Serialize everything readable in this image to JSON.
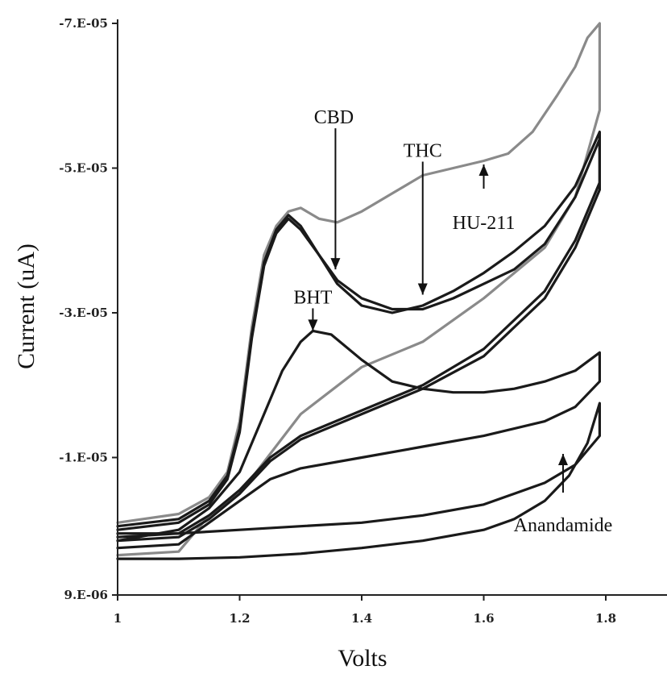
{
  "chart_data": {
    "type": "line",
    "xlabel": "Volts",
    "ylabel": "Current (uA)",
    "xlim": [
      1,
      1.8
    ],
    "ylim": [
      9e-06,
      -7e-05
    ],
    "x_ticks": [
      {
        "value": 1,
        "label": "1"
      },
      {
        "value": 1.2,
        "label": "1.2"
      },
      {
        "value": 1.4,
        "label": "1.4"
      },
      {
        "value": 1.6,
        "label": "1.6"
      },
      {
        "value": 1.8,
        "label": "1.8"
      }
    ],
    "y_ticks": [
      {
        "value": -7e-05,
        "label": "-7.E-05"
      },
      {
        "value": -5e-05,
        "label": "-5.E-05"
      },
      {
        "value": -3e-05,
        "label": "-3.E-05"
      },
      {
        "value": -1e-05,
        "label": "-1.E-05"
      },
      {
        "value": 9e-06,
        "label": "9.E-06"
      }
    ],
    "grid": false,
    "legend": "none",
    "series": [
      {
        "label": "HU-211",
        "color": "#8a8a8a",
        "x": [
          1.0,
          1.1,
          1.15,
          1.18,
          1.2,
          1.22,
          1.24,
          1.26,
          1.28,
          1.3,
          1.33,
          1.36,
          1.4,
          1.45,
          1.5,
          1.55,
          1.6,
          1.64,
          1.68,
          1.72,
          1.75,
          1.77,
          1.79,
          1.79,
          1.75,
          1.7,
          1.6,
          1.5,
          1.4,
          1.3,
          1.25,
          1.2,
          1.15,
          1.1,
          1.0
        ],
        "y": [
          -1e-06,
          -2.2e-06,
          -4.5e-06,
          -8e-06,
          -1.5e-05,
          -2.8e-05,
          -3.8e-05,
          -4.2e-05,
          -4.4e-05,
          -4.45e-05,
          -4.3e-05,
          -4.25e-05,
          -4.4e-05,
          -4.65e-05,
          -4.9e-05,
          -5e-05,
          -5.1e-05,
          -5.2e-05,
          -5.5e-05,
          -6e-05,
          -6.4e-05,
          -6.8e-05,
          -7e-05,
          -5.8e-05,
          -4.6e-05,
          -3.9e-05,
          -3.2e-05,
          -2.6e-05,
          -2.25e-05,
          -1.6e-05,
          -1.05e-05,
          -5e-06,
          -2e-06,
          3e-06,
          3.5e-06
        ]
      },
      {
        "label": "CBD",
        "color": "#1a1a1a",
        "x": [
          1.0,
          1.1,
          1.15,
          1.18,
          1.2,
          1.22,
          1.24,
          1.26,
          1.28,
          1.3,
          1.33,
          1.36,
          1.4,
          1.45,
          1.5,
          1.55,
          1.6,
          1.65,
          1.7,
          1.75,
          1.79,
          1.79,
          1.75,
          1.7,
          1.6,
          1.5,
          1.4,
          1.3,
          1.25,
          1.2,
          1.15,
          1.1,
          1.0
        ],
        "y": [
          -5e-07,
          -1.5e-06,
          -4e-06,
          -7.5e-06,
          -1.4e-05,
          -2.7e-05,
          -3.7e-05,
          -4.15e-05,
          -4.35e-05,
          -4.2e-05,
          -3.8e-05,
          -3.45e-05,
          -3.2e-05,
          -3.05e-05,
          -3.05e-05,
          -3.2e-05,
          -3.4e-05,
          -3.6e-05,
          -3.95e-05,
          -4.6e-05,
          -5.4e-05,
          -4.7e-05,
          -3.9e-05,
          -3.2e-05,
          -2.4e-05,
          -1.95e-05,
          -1.6e-05,
          -1.25e-05,
          -9.5e-06,
          -5e-06,
          -1.5e-06,
          1e-06,
          1.5e-06
        ]
      },
      {
        "label": "THC",
        "color": "#1a1a1a",
        "x": [
          1.0,
          1.1,
          1.15,
          1.18,
          1.2,
          1.22,
          1.24,
          1.26,
          1.28,
          1.3,
          1.33,
          1.36,
          1.4,
          1.45,
          1.5,
          1.55,
          1.6,
          1.65,
          1.7,
          1.75,
          1.79,
          1.79,
          1.75,
          1.7,
          1.6,
          1.5,
          1.4,
          1.3,
          1.25,
          1.2,
          1.15,
          1.1,
          1.0
        ],
        "y": [
          0,
          -1e-06,
          -3.5e-06,
          -7e-06,
          -1.35e-05,
          -2.65e-05,
          -3.65e-05,
          -4.1e-05,
          -4.3e-05,
          -4.15e-05,
          -3.8e-05,
          -3.4e-05,
          -3.1e-05,
          -3e-05,
          -3.1e-05,
          -3.3e-05,
          -3.55e-05,
          -3.85e-05,
          -4.2e-05,
          -4.75e-05,
          -5.5e-05,
          -4.8e-05,
          -4e-05,
          -3.3e-05,
          -2.5e-05,
          -2e-05,
          -1.65e-05,
          -1.3e-05,
          -1e-05,
          -5.5e-06,
          -2e-06,
          5e-07,
          1e-06
        ]
      },
      {
        "label": "BHT",
        "color": "#1a1a1a",
        "x": [
          1.0,
          1.1,
          1.15,
          1.2,
          1.24,
          1.27,
          1.3,
          1.32,
          1.35,
          1.4,
          1.45,
          1.5,
          1.55,
          1.6,
          1.65,
          1.7,
          1.75,
          1.79,
          1.79,
          1.75,
          1.7,
          1.6,
          1.5,
          1.4,
          1.3,
          1.25,
          1.2,
          1.15,
          1.1,
          1.0
        ],
        "y": [
          1.5e-06,
          0,
          -3e-06,
          -8e-06,
          -1.6e-05,
          -2.2e-05,
          -2.6e-05,
          -2.75e-05,
          -2.7e-05,
          -2.35e-05,
          -2.05e-05,
          -1.95e-05,
          -1.9e-05,
          -1.9e-05,
          -1.95e-05,
          -2.05e-05,
          -2.2e-05,
          -2.45e-05,
          -2.05e-05,
          -1.7e-05,
          -1.5e-05,
          -1.3e-05,
          -1.15e-05,
          -1e-05,
          -8.5e-06,
          -7e-06,
          -4e-06,
          -1e-06,
          2e-06,
          2.5e-06
        ]
      },
      {
        "label": "Anandamide",
        "color": "#1a1a1a",
        "x": [
          1.0,
          1.1,
          1.2,
          1.3,
          1.4,
          1.5,
          1.6,
          1.65,
          1.7,
          1.74,
          1.77,
          1.79,
          1.79,
          1.75,
          1.7,
          1.6,
          1.5,
          1.4,
          1.3,
          1.2,
          1.1,
          1.0
        ],
        "y": [
          4e-06,
          4e-06,
          3.8e-06,
          3.3e-06,
          2.5e-06,
          1.5e-06,
          0,
          -1.5e-06,
          -4e-06,
          -7.5e-06,
          -1.2e-05,
          -1.75e-05,
          -1.3e-05,
          -9e-06,
          -6.5e-06,
          -3.5e-06,
          -2e-06,
          -1e-06,
          -5e-07,
          0,
          5e-07,
          5e-07
        ]
      }
    ],
    "annotations": [
      {
        "text": "CBD",
        "target": [
          1.357,
          -3.6e-05
        ]
      },
      {
        "text": "THC",
        "target": [
          1.5,
          -3.25e-05
        ]
      },
      {
        "text": "HU-211",
        "target": [
          1.6,
          -5.05e-05
        ]
      },
      {
        "text": "BHT",
        "target": [
          1.32,
          -2.75e-05
        ]
      },
      {
        "text": "Anandamide",
        "target": [
          1.73,
          -1.05e-05
        ]
      }
    ]
  }
}
